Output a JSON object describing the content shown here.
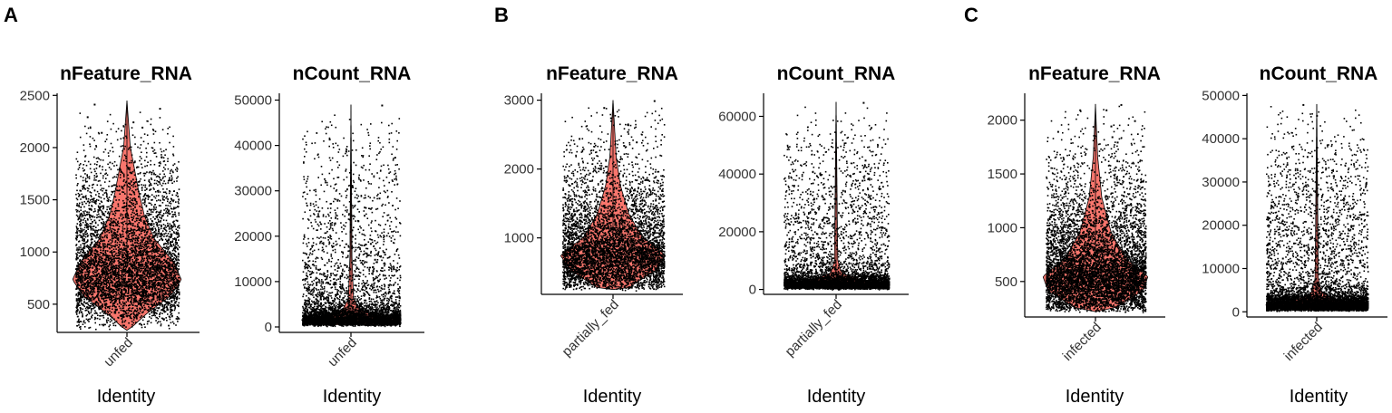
{
  "panels": [
    {
      "label": "A"
    },
    {
      "label": "B"
    },
    {
      "label": "C"
    }
  ],
  "colors": {
    "violin_fill": "#F8766D",
    "violin_stroke": "#000000",
    "points": "#000000"
  },
  "chart_data": [
    {
      "type": "violin",
      "panel": "A",
      "title": "nFeature_RNA",
      "xlabel": "Identity",
      "ylabel": "",
      "categories": [
        "unfed"
      ],
      "ylim": [
        230,
        2520
      ],
      "yticks": [
        500,
        1000,
        1500,
        2000,
        2500
      ],
      "min": 250,
      "max": 2450,
      "peak": 2450,
      "violin_center": 880,
      "n_points": 5200,
      "outliers": [
        2420,
        2380,
        2300,
        2250,
        2200,
        2150,
        2100
      ]
    },
    {
      "type": "violin",
      "panel": "A",
      "title": "nCount_RNA",
      "xlabel": "Identity",
      "ylabel": "",
      "categories": [
        "unfed"
      ],
      "ylim": [
        -1200,
        51500
      ],
      "yticks": [
        0,
        10000,
        20000,
        30000,
        40000,
        50000
      ],
      "min": 500,
      "max": 49000,
      "peak": 49000,
      "violin_center": 2600,
      "n_points": 5200,
      "outliers": [
        49000,
        41500,
        37500,
        31000,
        28500,
        23500,
        21500,
        20000,
        18500,
        16000,
        15000,
        14500
      ]
    },
    {
      "type": "violin",
      "panel": "B",
      "title": "nFeature_RNA",
      "xlabel": "Identity",
      "ylabel": "",
      "categories": [
        "partially_fed"
      ],
      "ylim": [
        180,
        3100
      ],
      "yticks": [
        1000,
        2000,
        3000
      ],
      "min": 250,
      "max": 3000,
      "peak": 3000,
      "violin_center": 820,
      "n_points": 5200,
      "outliers": [
        3000,
        2900,
        2750,
        2650,
        2550,
        2450,
        2400,
        2350
      ]
    },
    {
      "type": "violin",
      "panel": "B",
      "title": "nCount_RNA",
      "xlabel": "Identity",
      "ylabel": "",
      "categories": [
        "partially_fed"
      ],
      "ylim": [
        -1700,
        68000
      ],
      "yticks": [
        0,
        20000,
        40000,
        60000
      ],
      "min": 500,
      "max": 65000,
      "peak": 65000,
      "violin_center": 2800,
      "n_points": 5200,
      "outliers": [
        65000,
        45000,
        41000,
        38500,
        38000,
        34500,
        30000,
        27000,
        23000,
        19500,
        18000,
        16000,
        14500
      ]
    },
    {
      "type": "violin",
      "panel": "C",
      "title": "nFeature_RNA",
      "xlabel": "Identity",
      "ylabel": "",
      "categories": [
        "infected"
      ],
      "ylim": [
        170,
        2250
      ],
      "yticks": [
        500,
        1000,
        1500,
        2000
      ],
      "min": 220,
      "max": 2150,
      "peak": 2150,
      "violin_center": 540,
      "n_points": 6500,
      "outliers": [
        2150,
        2100,
        2100,
        2000,
        1950,
        1900,
        1850,
        1800
      ]
    },
    {
      "type": "violin",
      "panel": "C",
      "title": "nCount_RNA",
      "xlabel": "Identity",
      "ylabel": "",
      "categories": [
        "infected"
      ],
      "ylim": [
        -1200,
        50500
      ],
      "yticks": [
        0,
        10000,
        20000,
        30000,
        40000,
        50000
      ],
      "min": 500,
      "max": 48000,
      "peak": 48000,
      "violin_center": 2000,
      "n_points": 6500,
      "outliers": [
        48000,
        45500,
        36000,
        27000,
        24000,
        22000,
        20500,
        20000,
        19000,
        17500,
        16000,
        14500,
        13000,
        12500
      ]
    }
  ]
}
